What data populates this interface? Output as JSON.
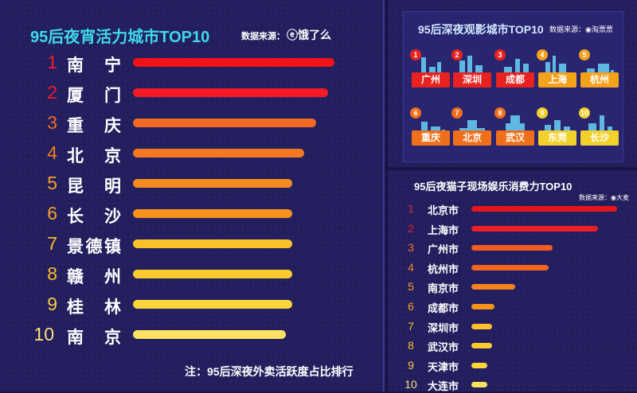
{
  "chart_data": [
    {
      "type": "bar",
      "title": "95后夜宵活力城市TOP10",
      "source": "数据来源：",
      "source_logo": "饿了么",
      "note": "注：95后深夜外卖活跃度占比排行",
      "ranks": [
        "1",
        "2",
        "3",
        "4",
        "5",
        "6",
        "7",
        "8",
        "9",
        "10"
      ],
      "categories": [
        "南宁",
        "厦门",
        "重庆",
        "北京",
        "昆明",
        "长沙",
        "景德镇",
        "赣州",
        "桂林",
        "南京"
      ],
      "values": [
        100,
        97,
        91,
        85,
        79,
        79,
        79,
        79,
        79,
        76
      ],
      "colors": [
        "#f01216",
        "#f41b27",
        "#f56a22",
        "#f57922",
        "#f78a1f",
        "#f7921d",
        "#fbc12b",
        "#fccc2f",
        "#fed53a",
        "#fee163"
      ],
      "rank_colors": [
        "#ee1c2f",
        "#ee1c2f",
        "#f36c2a",
        "#f37f22",
        "#f6a02a",
        "#f6a02a",
        "#fbbd24",
        "#fbbd24",
        "#fccb3a",
        "#fde276"
      ],
      "ylim": [
        0,
        100
      ]
    },
    {
      "type": "table",
      "title": "95后深夜观影城市TOP10",
      "source": "数据来源：",
      "source_logo": "淘票票",
      "ranks": [
        "1",
        "2",
        "3",
        "4",
        "5",
        "6",
        "7",
        "8",
        "9",
        "10"
      ],
      "categories": [
        "广州",
        "深圳",
        "成都",
        "上海",
        "杭州",
        "重庆",
        "北京",
        "武汉",
        "东莞",
        "长沙"
      ],
      "label_colors": [
        "#e8231f",
        "#e8231f",
        "#e8231f",
        "#f5a21b",
        "#f5a21b",
        "#f06f1a",
        "#f06f1a",
        "#f06f1a",
        "#f2d12a",
        "#f2d12a"
      ]
    },
    {
      "type": "bar",
      "title": "95后夜猫子现场娱乐消费力TOP10",
      "source": "数据来源：",
      "source_logo": "大麦",
      "ranks": [
        "1",
        "2",
        "3",
        "4",
        "5",
        "6",
        "7",
        "8",
        "9",
        "10"
      ],
      "categories": [
        "北京市",
        "上海市",
        "广州市",
        "杭州市",
        "南京市",
        "成都市",
        "深圳市",
        "武汉市",
        "天津市",
        "大连市"
      ],
      "values": [
        100,
        87,
        56,
        53,
        30,
        16,
        14,
        14,
        11,
        11
      ],
      "colors": [
        "#e8141b",
        "#ee1f26",
        "#f35b20",
        "#f2661f",
        "#f5821f",
        "#f5921c",
        "#fcc02b",
        "#fccc2f",
        "#fdd43a",
        "#fde15b"
      ],
      "rank_colors": [
        "#ee1c2f",
        "#ee1c2f",
        "#f36c2a",
        "#f37f22",
        "#f6a02a",
        "#f6a02a",
        "#fbbd24",
        "#fbbd24",
        "#fccb3a",
        "#fde276"
      ],
      "ylim": [
        0,
        100
      ]
    }
  ]
}
